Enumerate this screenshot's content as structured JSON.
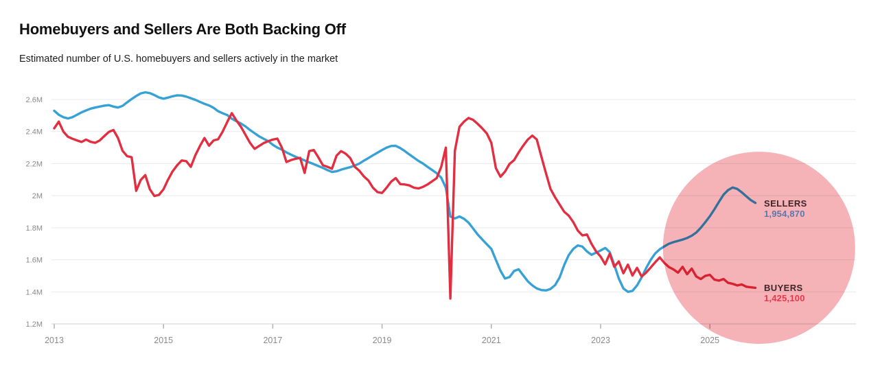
{
  "header": {
    "title": "Homebuyers and Sellers Are Both Backing Off",
    "subtitle": "Estimated number of U.S. homebuyers and sellers actively in the market"
  },
  "colors": {
    "sellers_line": "#36a1d5",
    "buyers_line": "#e22e41",
    "highlight_pink": "#f5b3b8",
    "label_dark": "#3f2529",
    "sellers_value_text": "#5d77ab",
    "buyers_value_text": "#e8374a",
    "gridline": "#e9e9e9",
    "axis_text": "#8a8a8a"
  },
  "chart_data": {
    "type": "line",
    "title": "Homebuyers and Sellers Are Both Backing Off",
    "subtitle": "Estimated number of U.S. homebuyers and sellers actively in the market",
    "unit": "millions of people",
    "grid": "horizontal-on",
    "legend_position": "end-of-line-labels",
    "x_axis": {
      "ticks": [
        2013,
        2015,
        2017,
        2019,
        2021,
        2023,
        2025
      ],
      "range": [
        2012.95,
        2026.0
      ]
    },
    "y_axis": {
      "range": [
        1.2,
        2.6
      ],
      "ticks": [
        {
          "value": 2.6,
          "label": "2.6M"
        },
        {
          "value": 2.4,
          "label": "2.4M"
        },
        {
          "value": 2.2,
          "label": "2.2M"
        },
        {
          "value": 2.0,
          "label": "2M"
        },
        {
          "value": 1.8,
          "label": "1.8M"
        },
        {
          "value": 1.6,
          "label": "1.6M"
        },
        {
          "value": 1.4,
          "label": "1.4M"
        },
        {
          "value": 1.2,
          "label": "1.2M"
        }
      ]
    },
    "highlight_circle": {
      "center_year": 2025.9,
      "center_value": 1.675,
      "radius_px": 140,
      "color": "#f5b3b8"
    },
    "series": [
      {
        "id": "sellers",
        "name": "SELLERS",
        "end_label": "1,954,870",
        "end_value": 1954870,
        "line_color": "#36a1d5",
        "value_color": "#5d77ab",
        "name_color": "#3f2529",
        "start": "2013-01",
        "frequency": "monthly",
        "values": [
          2.53,
          2.505,
          2.49,
          2.482,
          2.49,
          2.505,
          2.52,
          2.532,
          2.543,
          2.55,
          2.556,
          2.562,
          2.565,
          2.556,
          2.55,
          2.56,
          2.582,
          2.603,
          2.622,
          2.638,
          2.645,
          2.64,
          2.628,
          2.613,
          2.605,
          2.612,
          2.62,
          2.626,
          2.625,
          2.618,
          2.608,
          2.598,
          2.585,
          2.573,
          2.563,
          2.548,
          2.527,
          2.514,
          2.503,
          2.48,
          2.465,
          2.45,
          2.432,
          2.41,
          2.39,
          2.37,
          2.355,
          2.34,
          2.318,
          2.3,
          2.287,
          2.27,
          2.256,
          2.243,
          2.232,
          2.22,
          2.208,
          2.197,
          2.185,
          2.173,
          2.16,
          2.148,
          2.152,
          2.162,
          2.17,
          2.178,
          2.188,
          2.2,
          2.218,
          2.235,
          2.252,
          2.268,
          2.285,
          2.3,
          2.31,
          2.311,
          2.297,
          2.278,
          2.257,
          2.237,
          2.217,
          2.2,
          2.18,
          2.16,
          2.14,
          2.112,
          2.05,
          1.87,
          1.858,
          1.87,
          1.856,
          1.832,
          1.795,
          1.758,
          1.727,
          1.697,
          1.668,
          1.6,
          1.532,
          1.483,
          1.492,
          1.53,
          1.541,
          1.503,
          1.466,
          1.44,
          1.421,
          1.411,
          1.409,
          1.418,
          1.442,
          1.49,
          1.567,
          1.63,
          1.668,
          1.69,
          1.682,
          1.652,
          1.631,
          1.645,
          1.658,
          1.674,
          1.648,
          1.568,
          1.483,
          1.421,
          1.4,
          1.406,
          1.44,
          1.49,
          1.548,
          1.6,
          1.64,
          1.666,
          1.684,
          1.7,
          1.71,
          1.718,
          1.726,
          1.736,
          1.75,
          1.77,
          1.8,
          1.835,
          1.872,
          1.915,
          1.962,
          2.006,
          2.035,
          2.051,
          2.042,
          2.021,
          1.996,
          1.972,
          1.955
        ]
      },
      {
        "id": "buyers",
        "name": "BUYERS",
        "end_label": "1,425,100",
        "end_value": 1425100,
        "line_color": "#e22e41",
        "value_color": "#e8374a",
        "name_color": "#3f2529",
        "start": "2013-01",
        "frequency": "monthly",
        "values": [
          2.42,
          2.462,
          2.4,
          2.368,
          2.355,
          2.345,
          2.335,
          2.35,
          2.336,
          2.33,
          2.345,
          2.372,
          2.398,
          2.41,
          2.36,
          2.28,
          2.247,
          2.24,
          2.03,
          2.098,
          2.128,
          2.04,
          1.998,
          2.005,
          2.04,
          2.1,
          2.152,
          2.19,
          2.22,
          2.215,
          2.18,
          2.252,
          2.31,
          2.36,
          2.312,
          2.345,
          2.352,
          2.4,
          2.46,
          2.515,
          2.47,
          2.43,
          2.38,
          2.33,
          2.292,
          2.31,
          2.328,
          2.34,
          2.35,
          2.356,
          2.3,
          2.21,
          2.222,
          2.23,
          2.236,
          2.142,
          2.278,
          2.285,
          2.24,
          2.19,
          2.18,
          2.168,
          2.25,
          2.278,
          2.262,
          2.235,
          2.18,
          2.156,
          2.12,
          2.095,
          2.05,
          2.022,
          2.017,
          2.05,
          2.088,
          2.11,
          2.072,
          2.07,
          2.064,
          2.05,
          2.045,
          2.055,
          2.07,
          2.09,
          2.11,
          2.18,
          2.3,
          1.358,
          2.28,
          2.43,
          2.462,
          2.485,
          2.473,
          2.448,
          2.42,
          2.388,
          2.33,
          2.172,
          2.118,
          2.15,
          2.198,
          2.222,
          2.27,
          2.312,
          2.35,
          2.375,
          2.35,
          2.242,
          2.14,
          2.042,
          1.99,
          1.945,
          1.9,
          1.875,
          1.835,
          1.782,
          1.752,
          1.758,
          1.7,
          1.652,
          1.62,
          1.572,
          1.638,
          1.556,
          1.59,
          1.516,
          1.57,
          1.502,
          1.55,
          1.496,
          1.52,
          1.552,
          1.585,
          1.615,
          1.58,
          1.555,
          1.54,
          1.52,
          1.556,
          1.51,
          1.545,
          1.496,
          1.48,
          1.5,
          1.506,
          1.476,
          1.47,
          1.48,
          1.456,
          1.45,
          1.44,
          1.446,
          1.432,
          1.428,
          1.425
        ]
      }
    ]
  }
}
